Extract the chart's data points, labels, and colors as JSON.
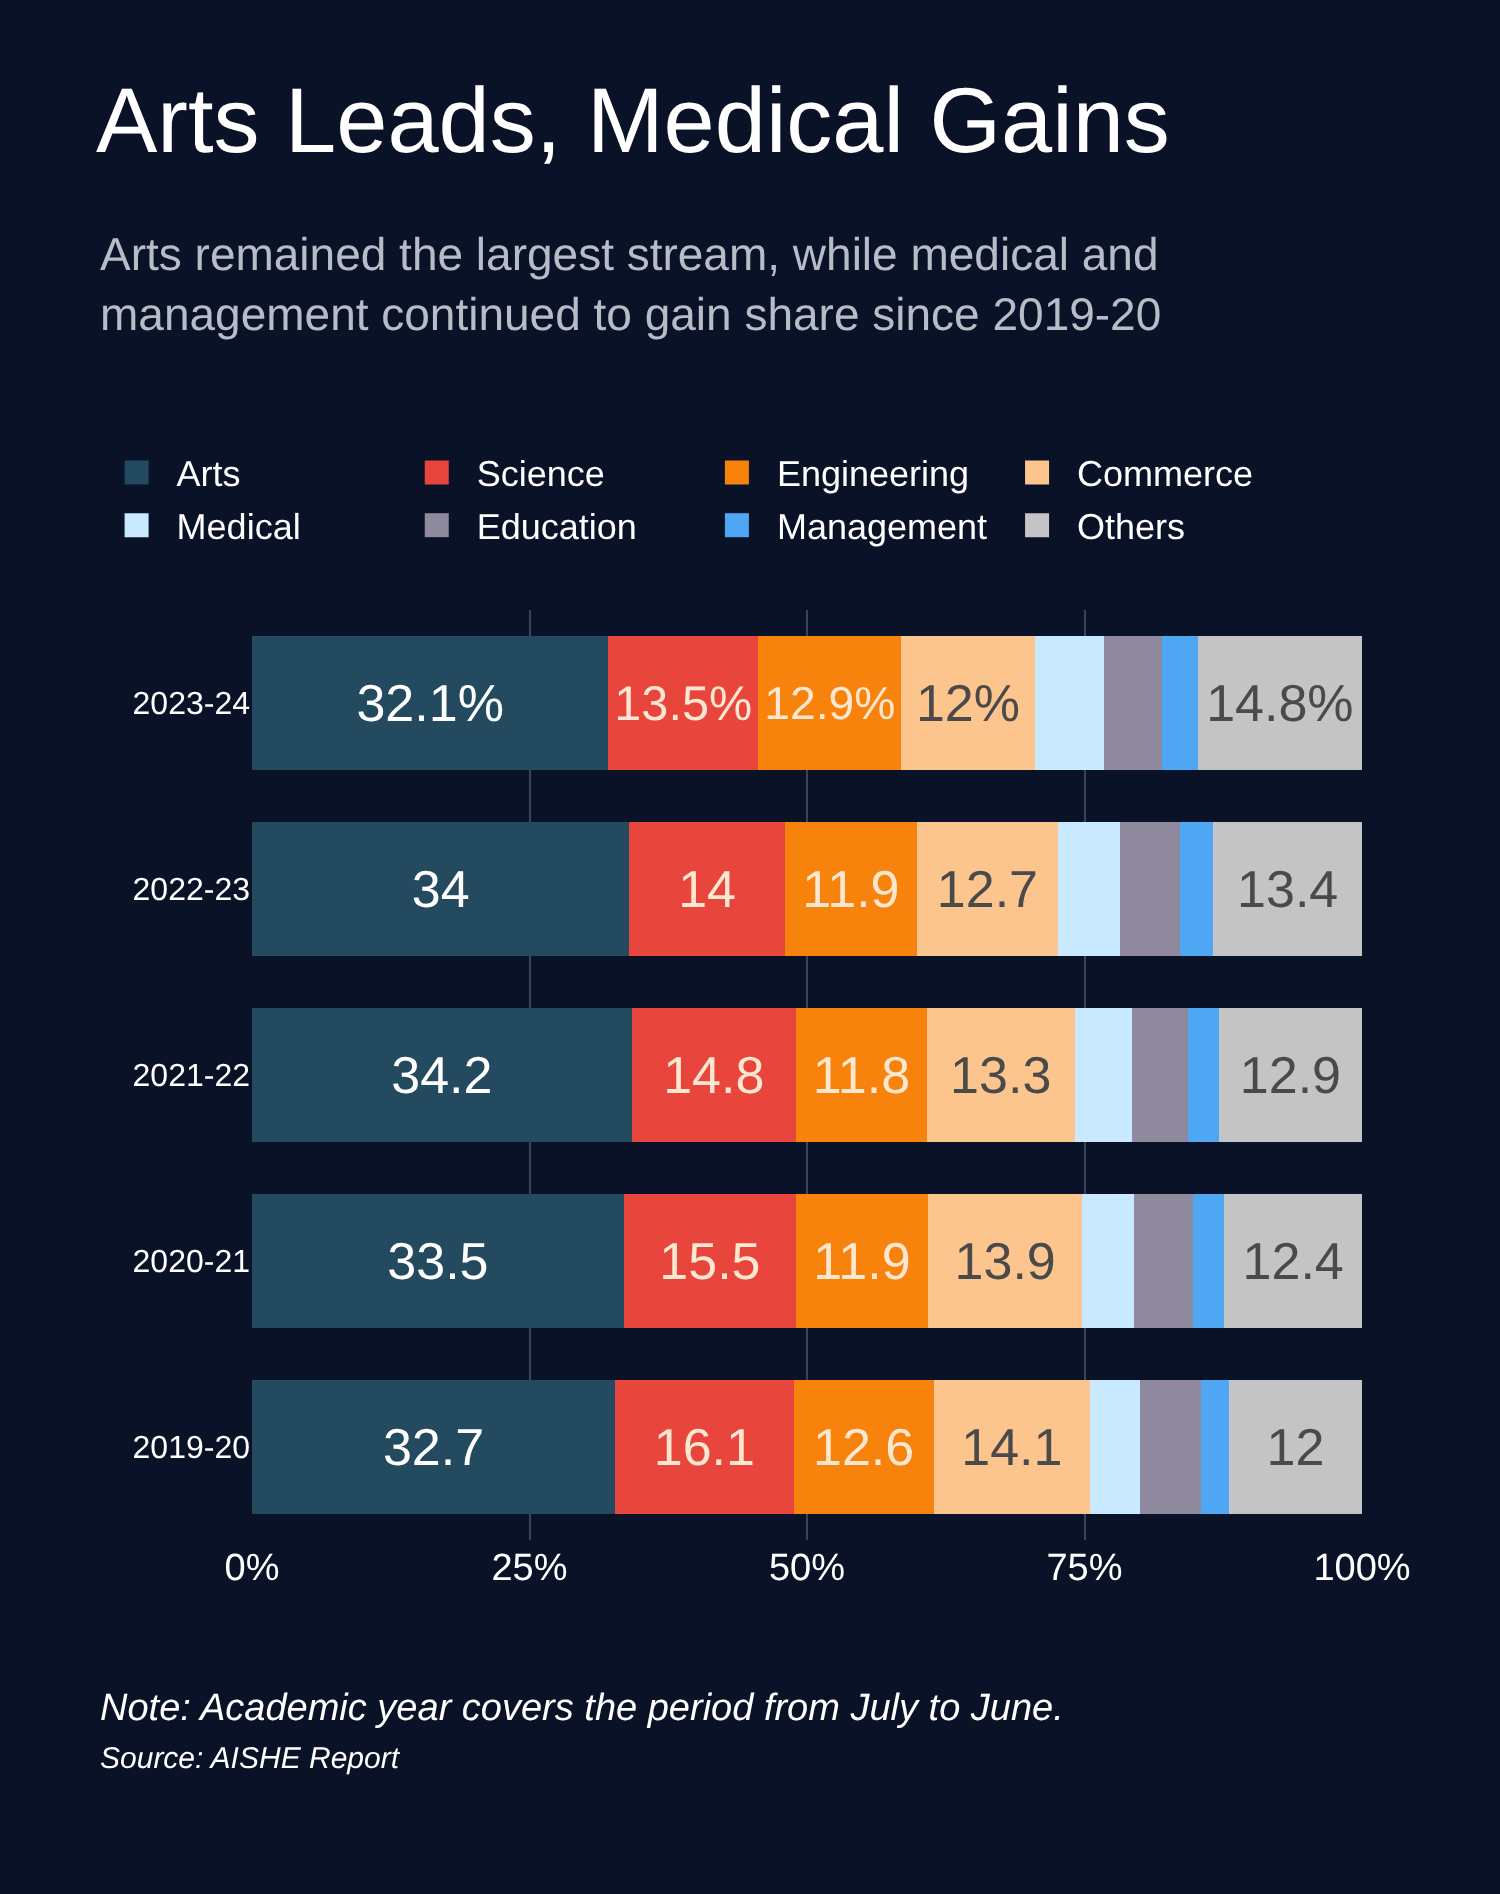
{
  "chart_data": {
    "type": "bar",
    "orientation": "horizontal",
    "stacked": true,
    "title": "Arts Leads, Medical Gains",
    "subtitle": "Arts remained the largest stream, while medical and management continued to gain share since 2019-20",
    "categories": [
      "2023-24",
      "2022-23",
      "2021-22",
      "2020-21",
      "2019-20"
    ],
    "series": [
      {
        "name": "Arts",
        "color": "#234a5f",
        "values": [
          32.1,
          34,
          34.2,
          33.5,
          32.7
        ],
        "value_labels": [
          "32.1%",
          "34",
          "34.2",
          "33.5",
          "32.7"
        ]
      },
      {
        "name": "Science",
        "color": "#e8453c",
        "values": [
          13.5,
          14,
          14.8,
          15.5,
          16.1
        ],
        "value_labels": [
          "13.5%",
          "14",
          "14.8",
          "15.5",
          "16.1"
        ]
      },
      {
        "name": "Engineering",
        "color": "#f7820c",
        "values": [
          12.9,
          11.9,
          11.8,
          11.9,
          12.6
        ],
        "value_labels": [
          "12.9%",
          "11.9",
          "11.8",
          "11.9",
          "12.6"
        ]
      },
      {
        "name": "Commerce",
        "color": "#fdc58e",
        "values": [
          12,
          12.7,
          13.3,
          13.9,
          14.1
        ],
        "value_labels": [
          "12%",
          "12.7",
          "13.3",
          "13.9",
          "14.1"
        ]
      },
      {
        "name": "Medical",
        "color": "#c8e9ff",
        "values": [
          6.3,
          5.6,
          5.2,
          4.7,
          4.5
        ]
      },
      {
        "name": "Education",
        "color": "#8e899c",
        "values": [
          5.2,
          5.4,
          5.0,
          5.3,
          5.5
        ]
      },
      {
        "name": "Management",
        "color": "#4fa7f4",
        "values": [
          3.2,
          3.0,
          2.8,
          2.8,
          2.5
        ]
      },
      {
        "name": "Others",
        "color": "#c4c4c4",
        "values": [
          14.8,
          13.4,
          12.9,
          12.4,
          12
        ],
        "value_labels": [
          "14.8%",
          "13.4",
          "12.9",
          "12.4",
          "12"
        ]
      }
    ],
    "xlim": [
      0,
      100
    ],
    "xticks": [
      {
        "value": 0,
        "label": "0%"
      },
      {
        "value": 25,
        "label": "25%"
      },
      {
        "value": 50,
        "label": "50%"
      },
      {
        "value": 75,
        "label": "75%"
      },
      {
        "value": 100,
        "label": "100%"
      }
    ],
    "grid": "x",
    "legend": "top left",
    "annotations": [
      "Note: Academic year covers the period from July to June.",
      "Source: AISHE Report"
    ]
  }
}
